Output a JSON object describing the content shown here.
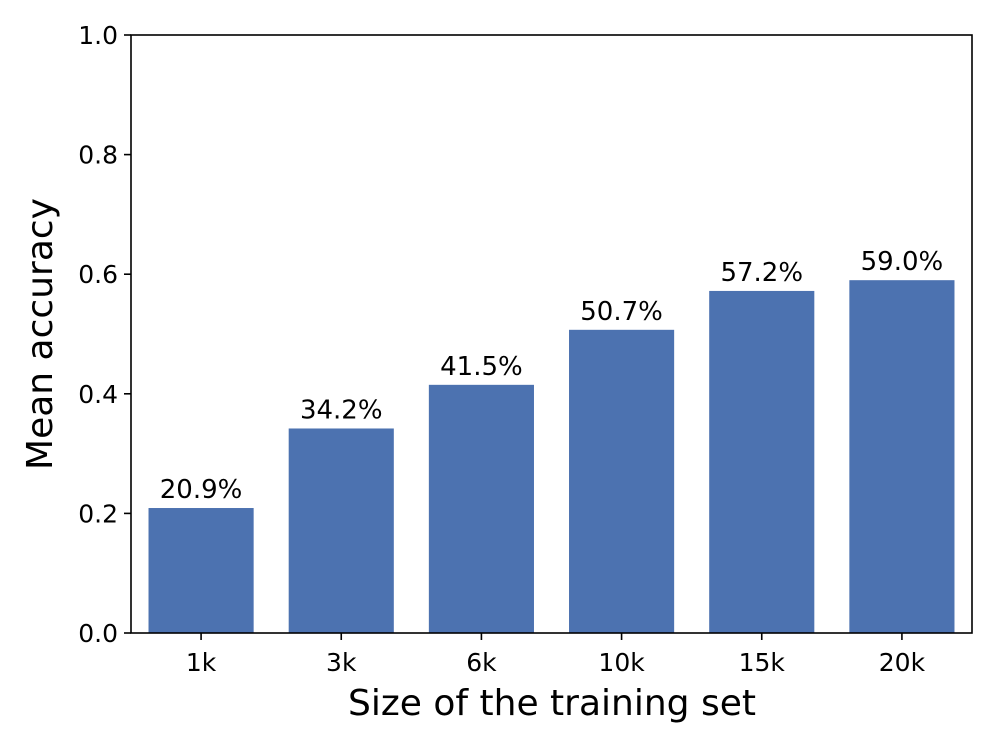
{
  "chart_data": {
    "type": "bar",
    "categories": [
      "1k",
      "3k",
      "6k",
      "10k",
      "15k",
      "20k"
    ],
    "values": [
      0.209,
      0.342,
      0.415,
      0.507,
      0.572,
      0.59
    ],
    "data_labels": [
      "20.9%",
      "34.2%",
      "41.5%",
      "50.7%",
      "57.2%",
      "59.0%"
    ],
    "title": "",
    "xlabel": "Size of the training set",
    "ylabel": "Mean accuracy",
    "ylim": [
      0,
      1.0
    ],
    "yticks": [
      0.0,
      0.2,
      0.4,
      0.6,
      0.8,
      1.0
    ],
    "ytick_labels": [
      "0.0",
      "0.2",
      "0.4",
      "0.6",
      "0.8",
      "1.0"
    ],
    "grid": false,
    "bar_color": "#4c72b0"
  }
}
